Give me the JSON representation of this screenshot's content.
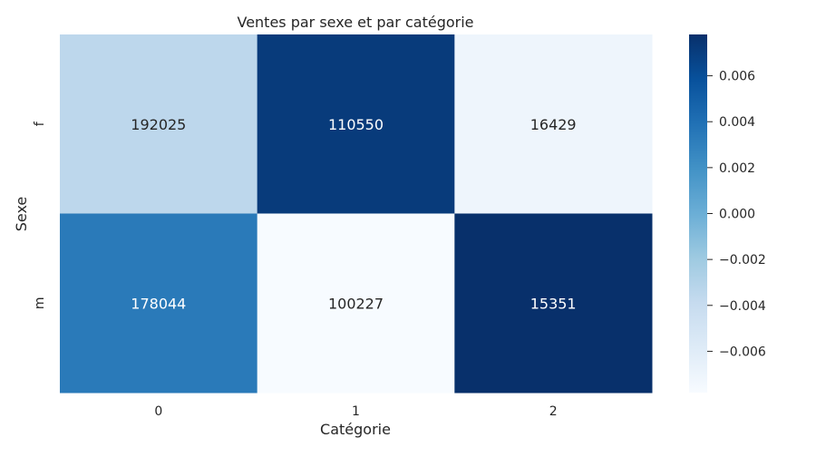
{
  "chart_data": {
    "type": "heatmap",
    "title": "Ventes par sexe et par catégorie",
    "xlabel": "Catégorie",
    "ylabel": "Sexe",
    "x_categories": [
      "0",
      "1",
      "2"
    ],
    "y_categories": [
      "f",
      "m"
    ],
    "cell_values": [
      [
        192025,
        110550,
        16429
      ],
      [
        178044,
        100227,
        15351
      ]
    ],
    "cell_colors": [
      [
        "#bdd7ec",
        "#083b7b",
        "#eef5fc"
      ],
      [
        "#2a7ab9",
        "#f7fbff",
        "#08306b"
      ]
    ],
    "cell_text_colors": [
      [
        "#262626",
        "#ffffff",
        "#262626"
      ],
      [
        "#ffffff",
        "#262626",
        "#ffffff"
      ]
    ],
    "colorbar": {
      "colormap": "Blues",
      "range": [
        -0.0078,
        0.0078
      ],
      "ticks": [
        0.006,
        0.004,
        0.002,
        0.0,
        -0.002,
        -0.004,
        -0.006
      ],
      "tick_labels": [
        "0.006",
        "0.004",
        "0.002",
        "0.000",
        "−0.002",
        "−0.004",
        "−0.006"
      ]
    },
    "grid": false,
    "legend": "colorbar-right"
  }
}
